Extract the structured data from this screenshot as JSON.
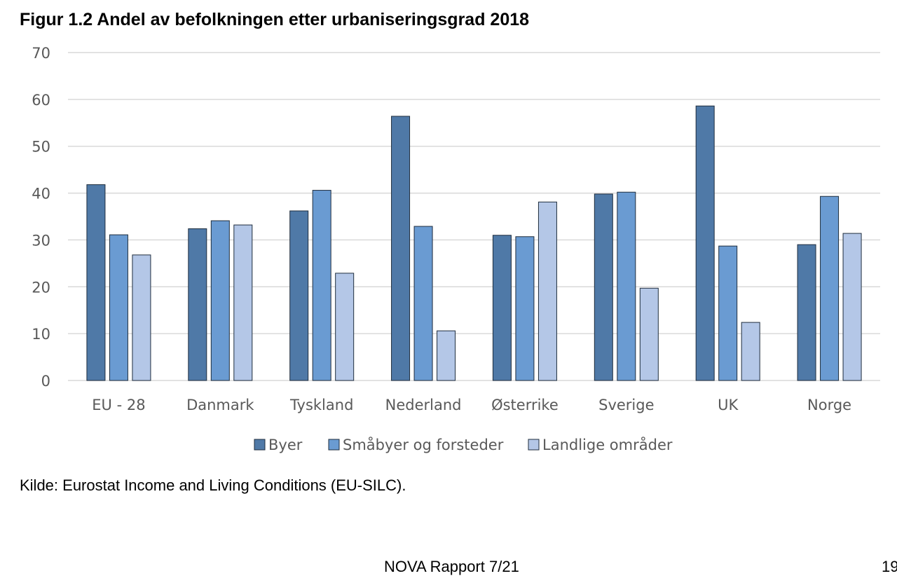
{
  "figure": {
    "title": "Figur 1.2 Andel av befolkningen etter urbaniseringsgrad 2018",
    "source": "Kilde: Eurostat Income and Living Conditions (EU-SILC).",
    "footer": "NOVA Rapport 7/21",
    "page_number": "19"
  },
  "colors": {
    "Byer": "#4f79a7",
    "Småbyer og forsteder": "#6a9bd2",
    "Landlige områder": "#b4c7e7",
    "grid": "#d9d9d9",
    "bar_outline": "#1f2d3d"
  },
  "chart_data": {
    "type": "bar",
    "title": "Figur 1.2 Andel av befolkningen etter urbaniseringsgrad 2018",
    "xlabel": "",
    "ylabel": "",
    "ylim": [
      0,
      70
    ],
    "yticks": [
      0,
      10,
      20,
      30,
      40,
      50,
      60,
      70
    ],
    "grid": true,
    "legend_position": "bottom",
    "categories": [
      "EU - 28",
      "Danmark",
      "Tyskland",
      "Nederland",
      "Østerrike",
      "Sverige",
      "UK",
      "Norge"
    ],
    "series": [
      {
        "name": "Byer",
        "values": [
          41.8,
          32.4,
          36.2,
          56.4,
          31.0,
          39.8,
          58.6,
          29.0
        ]
      },
      {
        "name": "Småbyer og forsteder",
        "values": [
          31.1,
          34.1,
          40.6,
          32.9,
          30.7,
          40.2,
          28.7,
          39.3
        ]
      },
      {
        "name": "Landlige områder",
        "values": [
          26.8,
          33.2,
          22.9,
          10.6,
          38.1,
          19.7,
          12.4,
          31.4
        ]
      }
    ]
  }
}
